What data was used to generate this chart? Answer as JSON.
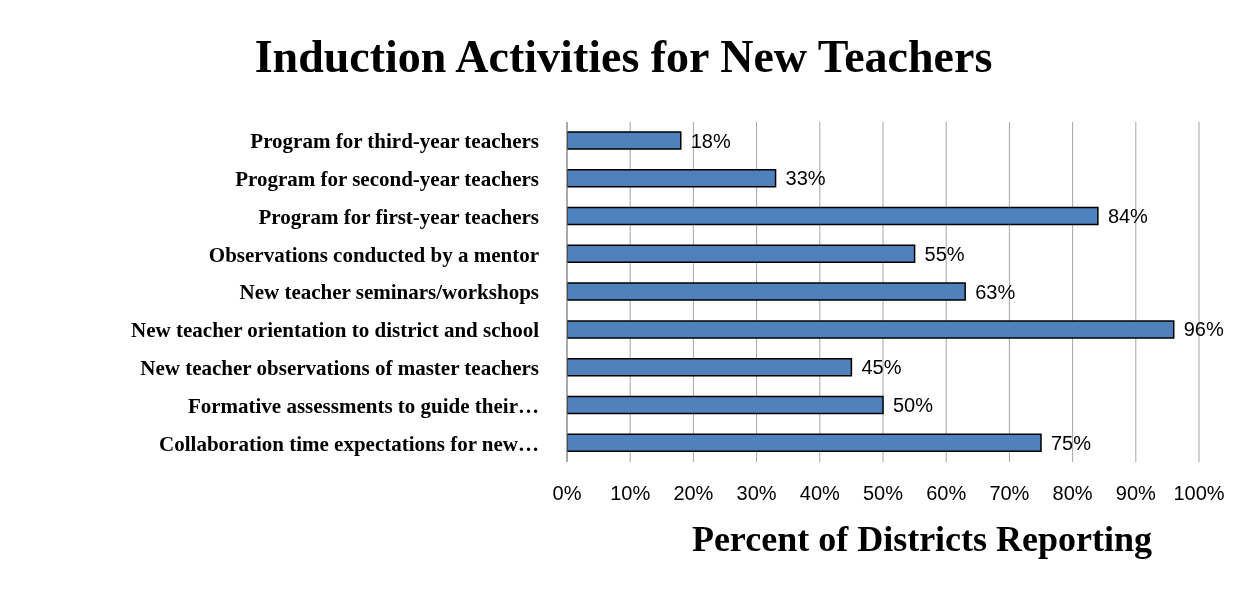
{
  "chart_data": {
    "type": "bar",
    "orientation": "horizontal",
    "title": "Induction Activities for New Teachers",
    "xlabel": "Percent of Districts Reporting",
    "categories": [
      "Program for third-year teachers",
      "Program for second-year teachers",
      "Program for first-year teachers",
      "Observations conducted by a mentor",
      "New teacher seminars/workshops",
      "New teacher orientation to district and school",
      "New teacher observations of master teachers",
      "Formative assessments to guide their…",
      "Collaboration time expectations for new…"
    ],
    "values": [
      18,
      33,
      84,
      55,
      63,
      96,
      45,
      50,
      75
    ],
    "value_labels": [
      "18%",
      "33%",
      "84%",
      "55%",
      "63%",
      "96%",
      "45%",
      "50%",
      "75%"
    ],
    "color": "#4f81bd",
    "xlim": [
      0,
      100
    ],
    "xticks": [
      {
        "value": 0,
        "label": "0%"
      },
      {
        "value": 10,
        "label": "10%"
      },
      {
        "value": 20,
        "label": "20%"
      },
      {
        "value": 30,
        "label": "30%"
      },
      {
        "value": 40,
        "label": "40%"
      },
      {
        "value": 50,
        "label": "50%"
      },
      {
        "value": 60,
        "label": "60%"
      },
      {
        "value": 70,
        "label": "70%"
      },
      {
        "value": 80,
        "label": "80%"
      },
      {
        "value": 90,
        "label": "90%"
      },
      {
        "value": 100,
        "label": "100%"
      }
    ],
    "grid": "x"
  }
}
